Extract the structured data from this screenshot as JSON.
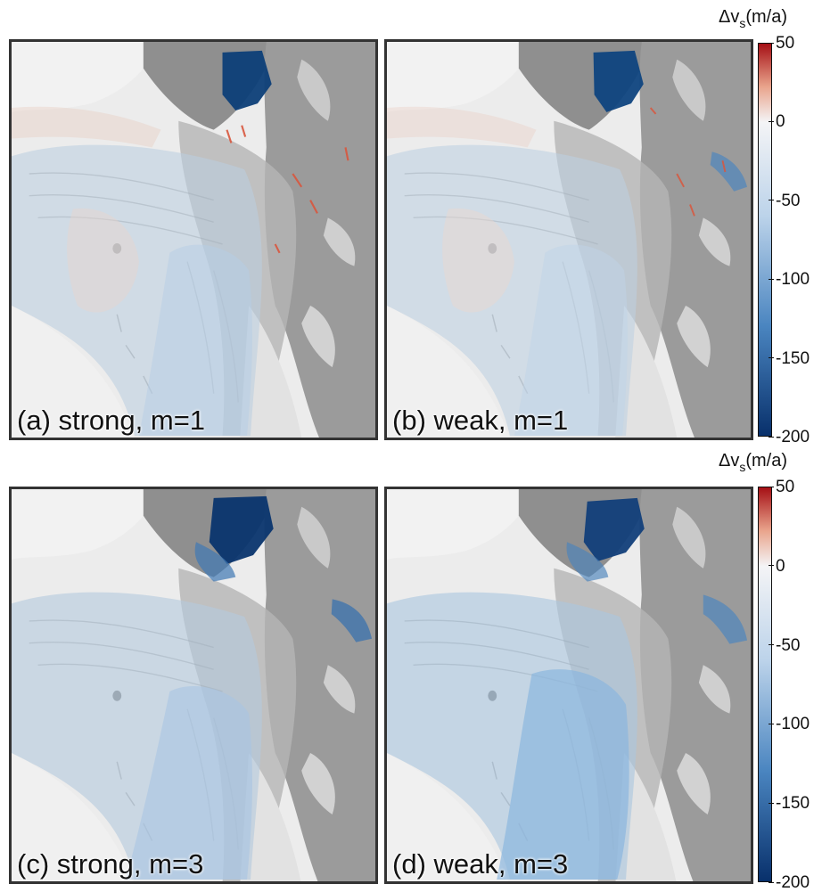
{
  "panels": [
    {
      "id": "pa",
      "label": "(a) strong, m=1"
    },
    {
      "id": "pb",
      "label": "(b) weak, m=1"
    },
    {
      "id": "pc",
      "label": "(c) strong, m=3"
    },
    {
      "id": "pd",
      "label": "(d) weak, m=3"
    }
  ],
  "colorbar": {
    "title_main": "Δv",
    "title_sub": "s",
    "title_unit": "(m/a)",
    "ticks": [
      "50",
      "0",
      "-50",
      "-100",
      "-150",
      "-200"
    ],
    "range": [
      -200,
      50
    ],
    "colors": {
      "high": "#a50f15",
      "zero": "#f4f4f6",
      "low": "#08306b"
    }
  }
}
